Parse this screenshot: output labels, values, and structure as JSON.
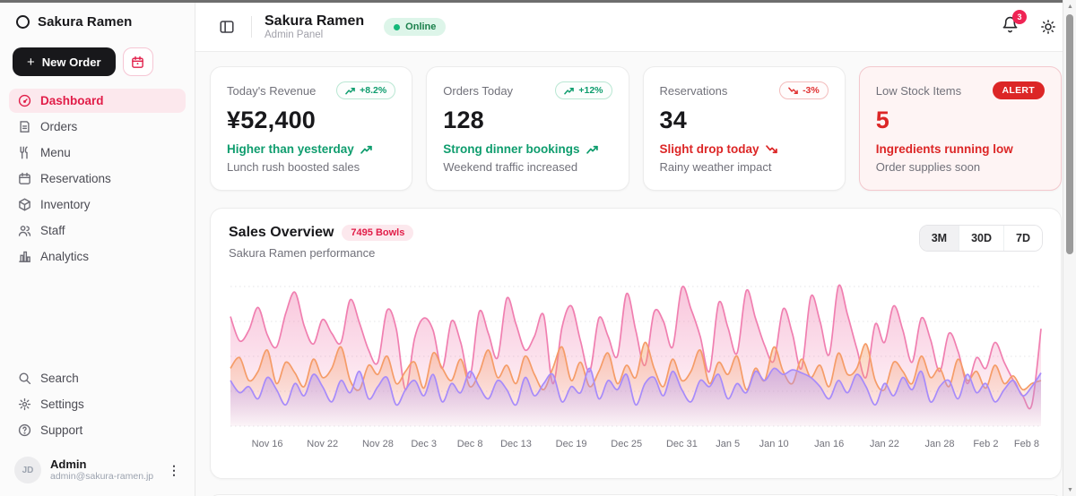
{
  "brand": {
    "name": "Sakura Ramen"
  },
  "sidebar": {
    "new_order_label": "New Order",
    "nav": [
      {
        "label": "Dashboard",
        "icon": "gauge-icon",
        "active": true
      },
      {
        "label": "Orders",
        "icon": "receipt-icon",
        "active": false
      },
      {
        "label": "Menu",
        "icon": "utensils-icon",
        "active": false
      },
      {
        "label": "Reservations",
        "icon": "calendar-icon",
        "active": false
      },
      {
        "label": "Inventory",
        "icon": "package-icon",
        "active": false
      },
      {
        "label": "Staff",
        "icon": "users-icon",
        "active": false
      },
      {
        "label": "Analytics",
        "icon": "bar-chart-icon",
        "active": false
      }
    ],
    "footer_nav": [
      {
        "label": "Search",
        "icon": "search-icon"
      },
      {
        "label": "Settings",
        "icon": "gear-icon"
      },
      {
        "label": "Support",
        "icon": "help-circle-icon"
      }
    ],
    "user": {
      "name": "Admin",
      "email": "admin@sakura-ramen.jp",
      "initials": "JD"
    }
  },
  "header": {
    "title": "Sakura Ramen",
    "subtitle": "Admin Panel",
    "status_label": "Online",
    "notification_count": "3"
  },
  "stats": {
    "cards": [
      {
        "label": "Today's Revenue",
        "badge": "+8.2%",
        "value": "¥52,400",
        "trend": "Higher than yesterday",
        "subtext": "Lunch rush boosted sales",
        "direction": "up"
      },
      {
        "label": "Orders Today",
        "badge": "+12%",
        "value": "128",
        "trend": "Strong dinner bookings",
        "subtext": "Weekend traffic increased",
        "direction": "up"
      },
      {
        "label": "Reservations",
        "badge": "-3%",
        "value": "34",
        "trend": "Slight drop today",
        "subtext": "Rainy weather impact",
        "direction": "down"
      },
      {
        "label": "Low Stock Items",
        "badge": "ALERT",
        "value": "5",
        "trend": "Ingredients running low",
        "subtext": "Order supplies soon",
        "direction": "alert"
      }
    ]
  },
  "sales": {
    "title": "Sales Overview",
    "badge": "7495 Bowls",
    "subtitle": "Sakura Ramen performance",
    "ranges": [
      "3M",
      "30D",
      "7D"
    ],
    "active_range": "3M"
  },
  "colors": {
    "accent_pink": "#e11d48",
    "green": "#0f9d6e",
    "red": "#dc2626",
    "series_pink": "#f07fb0",
    "series_orange": "#f59c68",
    "series_purple": "#a78bfa"
  },
  "chart_data": {
    "type": "area",
    "title": "Sales Overview",
    "subtitle": "Sakura Ramen performance",
    "total_label": "7495 Bowls",
    "x_labels": [
      "Nov 16",
      "Nov 22",
      "Nov 28",
      "Dec 3",
      "Dec 8",
      "Dec 13",
      "Dec 19",
      "Dec 25",
      "Dec 31",
      "Jan 5",
      "Jan 10",
      "Jan 16",
      "Jan 22",
      "Jan 28",
      "Feb 2",
      "Feb 8"
    ],
    "x_label_indices": [
      4,
      10,
      16,
      21,
      26,
      31,
      37,
      43,
      49,
      54,
      59,
      65,
      71,
      77,
      82,
      88
    ],
    "n_points": 89,
    "ylim": [
      0,
      100
    ],
    "grid": "horizontal-dashed",
    "legend": "none",
    "series": [
      {
        "name": "Pink",
        "color": "#f07fb0",
        "values": [
          72,
          56,
          63,
          78,
          60,
          52,
          74,
          88,
          66,
          54,
          70,
          61,
          55,
          83,
          68,
          50,
          42,
          76,
          64,
          24,
          58,
          71,
          63,
          38,
          69,
          55,
          32,
          75,
          61,
          45,
          84,
          67,
          50,
          59,
          73,
          28,
          65,
          79,
          56,
          36,
          71,
          59,
          46,
          87,
          63,
          40,
          75,
          69,
          52,
          91,
          77,
          59,
          36,
          81,
          65,
          48,
          89,
          71,
          53,
          43,
          77,
          61,
          38,
          85,
          69,
          47,
          92,
          73,
          51,
          32,
          67,
          55,
          79,
          63,
          42,
          71,
          57,
          36,
          61,
          49,
          28,
          45,
          38,
          55,
          42,
          30,
          20,
          14,
          64
        ]
      },
      {
        "name": "Orange",
        "color": "#f59c68",
        "values": [
          38,
          45,
          30,
          36,
          50,
          28,
          42,
          35,
          26,
          44,
          32,
          38,
          52,
          30,
          24,
          40,
          34,
          46,
          28,
          36,
          42,
          25,
          48,
          38,
          30,
          44,
          26,
          35,
          50,
          32,
          40,
          28,
          46,
          34,
          24,
          38,
          52,
          30,
          42,
          26,
          36,
          48,
          28,
          40,
          32,
          55,
          38,
          26,
          44,
          30,
          36,
          50,
          28,
          42,
          34,
          46,
          24,
          38,
          30,
          52,
          36,
          28,
          44,
          32,
          40,
          26,
          48,
          34,
          38,
          54,
          30,
          24,
          42,
          36,
          28,
          46,
          32,
          38,
          26,
          44,
          30,
          36,
          25,
          40,
          28,
          33,
          24,
          28,
          30
        ]
      },
      {
        "name": "Purple",
        "color": "#a78bfa",
        "values": [
          30,
          22,
          26,
          18,
          32,
          24,
          14,
          28,
          20,
          34,
          26,
          16,
          30,
          22,
          36,
          18,
          26,
          32,
          14,
          24,
          30,
          20,
          34,
          16,
          28,
          22,
          36,
          26,
          18,
          30,
          24,
          14,
          32,
          20,
          28,
          34,
          16,
          26,
          22,
          38,
          18,
          30,
          24,
          34,
          14,
          28,
          32,
          20,
          36,
          24,
          16,
          30,
          26,
          34,
          18,
          28,
          22,
          36,
          30,
          38,
          34,
          37,
          35,
          32,
          26,
          18,
          30,
          22,
          34,
          26,
          14,
          28,
          20,
          32,
          24,
          36,
          16,
          26,
          30,
          18,
          34,
          22,
          28,
          16,
          24,
          30,
          20,
          26,
          35
        ]
      }
    ]
  }
}
